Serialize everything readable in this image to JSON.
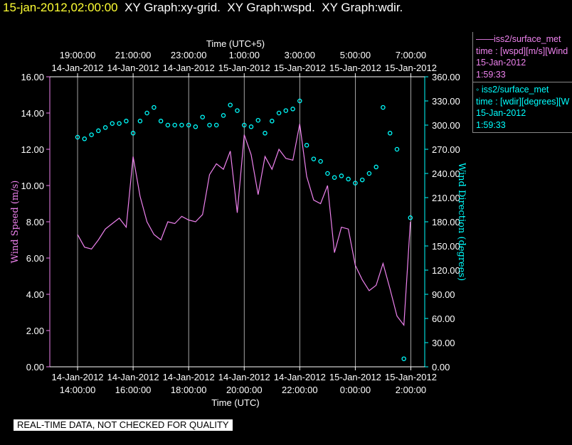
{
  "header": {
    "timestamp": "15-jan-2012,02:00:00",
    "graphs": "XY Graph:xy-grid.  XY Graph:wspd.  XY Graph:wdir."
  },
  "legend": {
    "wspd": {
      "name": "iss2/surface_met",
      "line2": "time : [wspd][m/s][Wind",
      "line3": "15-Jan-2012",
      "line4": "1:59:33"
    },
    "wdir": {
      "name": "iss2/surface_met",
      "line2": "time : [wdir][degrees][W",
      "line3": "15-Jan-2012",
      "line4": "1:59:33"
    }
  },
  "quality_note": "REAL-TIME DATA, NOT CHECKED FOR QUALITY",
  "colors": {
    "wspd": "#ee82ee",
    "wdir": "#00ffff",
    "axis": "#ffffff",
    "background": "#000000",
    "title_time": "#ffff33"
  },
  "chart_data": {
    "type": "line",
    "xlabel": "Time (UTC)",
    "x2label": "Time (UTC+5)",
    "ylabel": "Wind Speed (m/s)",
    "y2label": "Wind Direction (degrees)",
    "xlim": [
      "2012-01-14 13:00",
      "2012-01-15 02:30"
    ],
    "ylim": [
      0,
      16
    ],
    "y2lim": [
      0,
      360
    ],
    "grid": "vertical lines at 2-hour ticks",
    "x_ticks": [
      {
        "t": "2012-01-14 14:00",
        "date": "14-Jan-2012",
        "time": "14:00:00"
      },
      {
        "t": "2012-01-14 16:00",
        "date": "14-Jan-2012",
        "time": "16:00:00"
      },
      {
        "t": "2012-01-14 18:00",
        "date": "14-Jan-2012",
        "time": "18:00:00"
      },
      {
        "t": "2012-01-14 20:00",
        "date": "14-Jan-2012",
        "time": "20:00:00"
      },
      {
        "t": "2012-01-14 22:00",
        "date": "14-Jan-2012",
        "time": "22:00:00"
      },
      {
        "t": "2012-01-15 00:00",
        "date": "15-Jan-2012",
        "time": "0:00:00"
      },
      {
        "t": "2012-01-15 02:00",
        "date": "15-Jan-2012",
        "time": "2:00:00"
      }
    ],
    "x2_ticks": [
      {
        "t": "2012-01-14 14:00",
        "date": "14-Jan-2012",
        "time": "19:00:00"
      },
      {
        "t": "2012-01-14 16:00",
        "date": "14-Jan-2012",
        "time": "21:00:00"
      },
      {
        "t": "2012-01-14 18:00",
        "date": "14-Jan-2012",
        "time": "23:00:00"
      },
      {
        "t": "2012-01-14 20:00",
        "date": "15-Jan-2012",
        "time": "1:00:00"
      },
      {
        "t": "2012-01-14 22:00",
        "date": "15-Jan-2012",
        "time": "3:00:00"
      },
      {
        "t": "2012-01-15 00:00",
        "date": "15-Jan-2012",
        "time": "5:00:00"
      },
      {
        "t": "2012-01-15 02:00",
        "date": "15-Jan-2012",
        "time": "7:00:00"
      }
    ],
    "y_ticks": [
      "0.00",
      "2.00",
      "4.00",
      "6.00",
      "8.00",
      "10.00",
      "12.00",
      "14.00",
      "16.00"
    ],
    "y2_ticks": [
      "0.00",
      "30.00",
      "60.00",
      "90.00",
      "120.00",
      "150.00",
      "180.00",
      "210.00",
      "240.00",
      "270.00",
      "300.00",
      "330.00",
      "360.00"
    ],
    "series": [
      {
        "name": "iss2/surface_met",
        "style": "line",
        "axis": "left",
        "x": [
          "2012-01-14 14:00",
          "2012-01-14 14:15",
          "2012-01-14 14:30",
          "2012-01-14 14:45",
          "2012-01-14 15:00",
          "2012-01-14 15:15",
          "2012-01-14 15:30",
          "2012-01-14 15:45",
          "2012-01-14 16:00",
          "2012-01-14 16:15",
          "2012-01-14 16:30",
          "2012-01-14 16:45",
          "2012-01-14 17:00",
          "2012-01-14 17:15",
          "2012-01-14 17:30",
          "2012-01-14 17:45",
          "2012-01-14 18:00",
          "2012-01-14 18:15",
          "2012-01-14 18:30",
          "2012-01-14 18:45",
          "2012-01-14 19:00",
          "2012-01-14 19:15",
          "2012-01-14 19:30",
          "2012-01-14 19:45",
          "2012-01-14 20:00",
          "2012-01-14 20:15",
          "2012-01-14 20:30",
          "2012-01-14 20:45",
          "2012-01-14 21:00",
          "2012-01-14 21:15",
          "2012-01-14 21:30",
          "2012-01-14 21:45",
          "2012-01-14 22:00",
          "2012-01-14 22:15",
          "2012-01-14 22:30",
          "2012-01-14 22:45",
          "2012-01-14 23:00",
          "2012-01-14 23:15",
          "2012-01-14 23:30",
          "2012-01-14 23:45",
          "2012-01-15 00:00",
          "2012-01-15 00:15",
          "2012-01-15 00:30",
          "2012-01-15 00:45",
          "2012-01-15 01:00",
          "2012-01-15 01:15",
          "2012-01-15 01:30",
          "2012-01-15 01:45",
          "2012-01-15 01:59"
        ],
        "values": [
          7.3,
          6.6,
          6.5,
          7.0,
          7.6,
          7.9,
          8.2,
          7.7,
          11.6,
          9.4,
          8.0,
          7.3,
          7.0,
          8.0,
          7.9,
          8.3,
          8.1,
          8.0,
          8.4,
          10.6,
          11.2,
          10.9,
          11.9,
          8.5,
          12.8,
          11.7,
          9.5,
          11.6,
          10.9,
          12.0,
          11.5,
          11.4,
          13.4,
          10.5,
          9.2,
          9.0,
          10.0,
          6.3,
          7.7,
          7.6,
          5.6,
          4.8,
          4.2,
          4.5,
          5.7,
          4.3,
          2.8,
          2.3,
          8.0
        ]
      },
      {
        "name": "iss2/surface_met",
        "style": "markers",
        "axis": "right",
        "x": [
          "2012-01-14 14:00",
          "2012-01-14 14:15",
          "2012-01-14 14:30",
          "2012-01-14 14:45",
          "2012-01-14 15:00",
          "2012-01-14 15:15",
          "2012-01-14 15:30",
          "2012-01-14 15:45",
          "2012-01-14 16:00",
          "2012-01-14 16:15",
          "2012-01-14 16:30",
          "2012-01-14 16:45",
          "2012-01-14 17:00",
          "2012-01-14 17:15",
          "2012-01-14 17:30",
          "2012-01-14 17:45",
          "2012-01-14 18:00",
          "2012-01-14 18:15",
          "2012-01-14 18:30",
          "2012-01-14 18:45",
          "2012-01-14 19:00",
          "2012-01-14 19:15",
          "2012-01-14 19:30",
          "2012-01-14 19:45",
          "2012-01-14 20:00",
          "2012-01-14 20:15",
          "2012-01-14 20:30",
          "2012-01-14 20:45",
          "2012-01-14 21:00",
          "2012-01-14 21:15",
          "2012-01-14 21:30",
          "2012-01-14 21:45",
          "2012-01-14 22:00",
          "2012-01-14 22:15",
          "2012-01-14 22:30",
          "2012-01-14 22:45",
          "2012-01-14 23:00",
          "2012-01-14 23:15",
          "2012-01-14 23:30",
          "2012-01-14 23:45",
          "2012-01-15 00:00",
          "2012-01-15 00:15",
          "2012-01-15 00:30",
          "2012-01-15 00:45",
          "2012-01-15 01:00",
          "2012-01-15 01:15",
          "2012-01-15 01:30",
          "2012-01-15 01:45",
          "2012-01-15 01:59"
        ],
        "values": [
          285,
          283,
          288,
          293,
          297,
          302,
          302,
          305,
          290,
          305,
          315,
          322,
          305,
          300,
          300,
          300,
          300,
          298,
          310,
          300,
          300,
          312,
          325,
          318,
          300,
          298,
          306,
          290,
          305,
          315,
          318,
          320,
          330,
          275,
          258,
          255,
          240,
          235,
          237,
          233,
          228,
          232,
          240,
          248,
          322,
          290,
          270,
          10,
          185
        ]
      }
    ]
  }
}
